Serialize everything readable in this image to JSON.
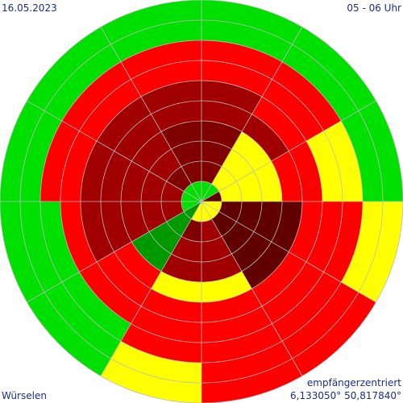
{
  "header": {
    "date": "16.05.2023",
    "time_range": "05 - 06 Uhr"
  },
  "footer": {
    "location": "Würselen",
    "mode": "empfängerzentriert",
    "coordinates": "6,133050° 50,817840°"
  },
  "colors": {
    "5": "#00e000",
    "4": "#009900",
    "3": "#ffff00",
    "2": "#ff0000",
    "1": "#cc0000",
    "0": "#a00000",
    "-1": "#800000",
    "-2": "#600000",
    "grid": "#bbbbbb"
  },
  "chart_data": {
    "type": "polar_sector_heatmap",
    "sectors": 12,
    "rings": 10,
    "ring_radii": [
      25,
      50,
      75,
      100,
      125,
      150,
      175,
      200,
      225,
      250
    ],
    "sector_levels": [
      [
        5,
        -1,
        -1,
        -1,
        0,
        0,
        2,
        2,
        5,
        5
      ],
      [
        5,
        3,
        3,
        3,
        0,
        2,
        2,
        2,
        5,
        5
      ],
      [
        -2,
        3,
        3,
        3,
        2,
        2,
        3,
        3,
        5,
        5
      ],
      [
        3,
        -2,
        -2,
        -2,
        -2,
        2,
        2,
        2,
        3,
        3
      ],
      [
        3,
        -2,
        -2,
        -2,
        -2,
        2,
        2,
        2,
        2,
        2
      ],
      [
        3,
        0,
        0,
        0,
        3,
        2,
        2,
        2,
        2,
        2
      ],
      [
        3,
        -1,
        0,
        0,
        3,
        2,
        2,
        2,
        3,
        3
      ],
      [
        4,
        4,
        4,
        4,
        2,
        2,
        2,
        5,
        5,
        5
      ],
      [
        5,
        0,
        0,
        0,
        0,
        0,
        2,
        5,
        5,
        5
      ],
      [
        5,
        0,
        0,
        0,
        0,
        0,
        2,
        2,
        5,
        5
      ],
      [
        5,
        -1,
        0,
        0,
        0,
        0,
        2,
        2,
        5,
        5
      ],
      [
        5,
        -1,
        -1,
        -1,
        0,
        0,
        2,
        2,
        5,
        5
      ]
    ]
  }
}
